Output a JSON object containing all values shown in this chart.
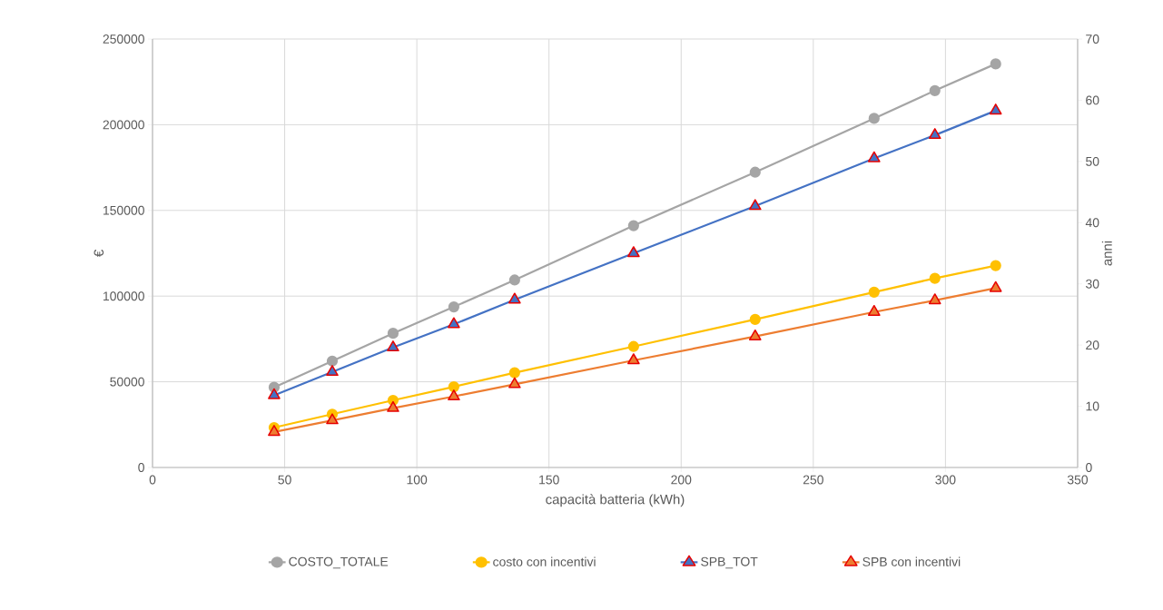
{
  "chart_data": {
    "type": "line",
    "xlabel": "capacità batteria (kWh)",
    "ylabel": "€",
    "y2label": "anni",
    "x": [
      46,
      68,
      91,
      114,
      137,
      182,
      228,
      273,
      296,
      319
    ],
    "xlim": [
      0,
      350
    ],
    "xticks": [
      0,
      50,
      100,
      150,
      200,
      250,
      300,
      350
    ],
    "ylim": [
      0,
      250000
    ],
    "yticks": [
      0,
      50000,
      100000,
      150000,
      200000,
      250000
    ],
    "y2lim": [
      0,
      70
    ],
    "y2ticks": [
      0,
      10,
      20,
      30,
      40,
      50,
      60,
      70
    ],
    "grid": true,
    "legend": "bottom",
    "series": [
      {
        "name": "COSTO_TOTALE",
        "color": "#a5a5a5",
        "marker": "circle",
        "values": [
          46800,
          62100,
          78300,
          93700,
          109400,
          141100,
          172300,
          203700,
          219900,
          235500
        ]
      },
      {
        "name": "costo con incentivi",
        "color": "#ffc000",
        "marker": "circle",
        "values": [
          23300,
          31100,
          39200,
          47100,
          55300,
          70600,
          86400,
          102300,
          110400,
          117800
        ]
      },
      {
        "name": "SPB_TOT",
        "color": "#4472c4",
        "marker": "triangle",
        "axis": "y2",
        "values": [
          11.8,
          15.6,
          19.6,
          23.4,
          27.4,
          35.0,
          42.7,
          50.5,
          54.3,
          58.3
        ]
      },
      {
        "name": "SPB con incentivi",
        "color": "#ed7d31",
        "marker": "triangle",
        "axis": "y2",
        "values": [
          5.8,
          7.7,
          9.7,
          11.6,
          13.6,
          17.5,
          21.4,
          25.4,
          27.3,
          29.3
        ]
      }
    ]
  }
}
